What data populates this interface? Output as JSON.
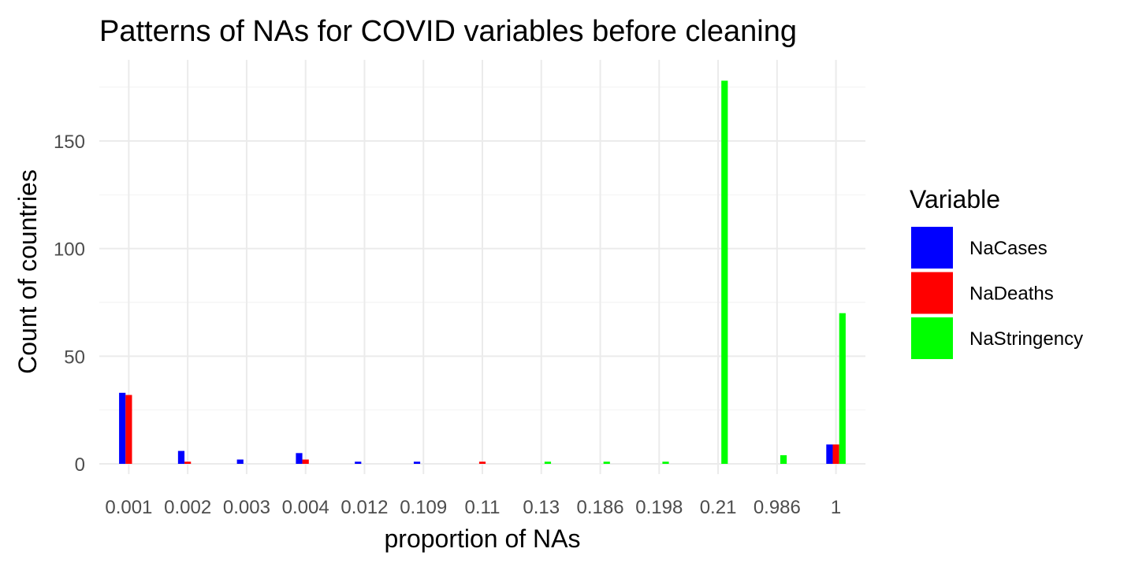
{
  "chart_data": {
    "type": "bar",
    "title": "Patterns of NAs for COVID variables before cleaning",
    "xlabel": "proportion of NAs",
    "ylabel": "Count of countries",
    "categories": [
      "0.001",
      "0.002",
      "0.003",
      "0.004",
      "0.012",
      "0.109",
      "0.11",
      "0.13",
      "0.186",
      "0.198",
      "0.21",
      "0.986",
      "1"
    ],
    "yticks": [
      "0",
      "50",
      "100",
      "150"
    ],
    "ylim": [
      0,
      180
    ],
    "grid": true,
    "legend": {
      "title": "Variable",
      "position": "right"
    },
    "series": [
      {
        "name": "NaCases",
        "color": "#0000ff",
        "values": [
          33,
          6,
          2,
          5,
          1,
          1,
          0,
          0,
          0,
          0,
          0,
          0,
          9
        ]
      },
      {
        "name": "NaDeaths",
        "color": "#ff0000",
        "values": [
          32,
          1,
          0,
          2,
          0,
          0,
          1,
          0,
          0,
          0,
          0,
          0,
          9
        ]
      },
      {
        "name": "NaStringency",
        "color": "#00ff00",
        "values": [
          0,
          0,
          0,
          0,
          0,
          0,
          0,
          1,
          1,
          1,
          178,
          4,
          70
        ]
      }
    ]
  }
}
